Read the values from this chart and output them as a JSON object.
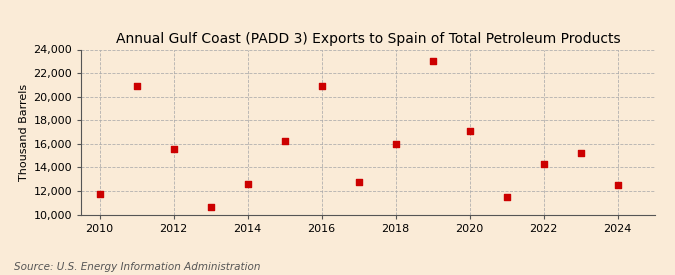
{
  "title": "Annual Gulf Coast (PADD 3) Exports to Spain of Total Petroleum Products",
  "ylabel": "Thousand Barrels",
  "source": "Source: U.S. Energy Information Administration",
  "background_color": "#faebd7",
  "years": [
    2010,
    2011,
    2012,
    2013,
    2014,
    2015,
    2016,
    2017,
    2018,
    2019,
    2020,
    2021,
    2022,
    2023,
    2024
  ],
  "values": [
    11700,
    20900,
    15600,
    10600,
    12600,
    16200,
    20900,
    12800,
    16000,
    23000,
    17100,
    11500,
    14300,
    15200,
    12500
  ],
  "marker_color": "#cc0000",
  "marker_size": 5,
  "ylim": [
    10000,
    24000
  ],
  "yticks": [
    10000,
    12000,
    14000,
    16000,
    18000,
    20000,
    22000,
    24000
  ],
  "xlim": [
    2009.5,
    2025.0
  ],
  "xticks": [
    2010,
    2012,
    2014,
    2016,
    2018,
    2020,
    2022,
    2024
  ],
  "grid_color": "#aaaaaa",
  "title_fontsize": 10,
  "axis_fontsize": 8,
  "tick_fontsize": 8,
  "source_fontsize": 7.5
}
